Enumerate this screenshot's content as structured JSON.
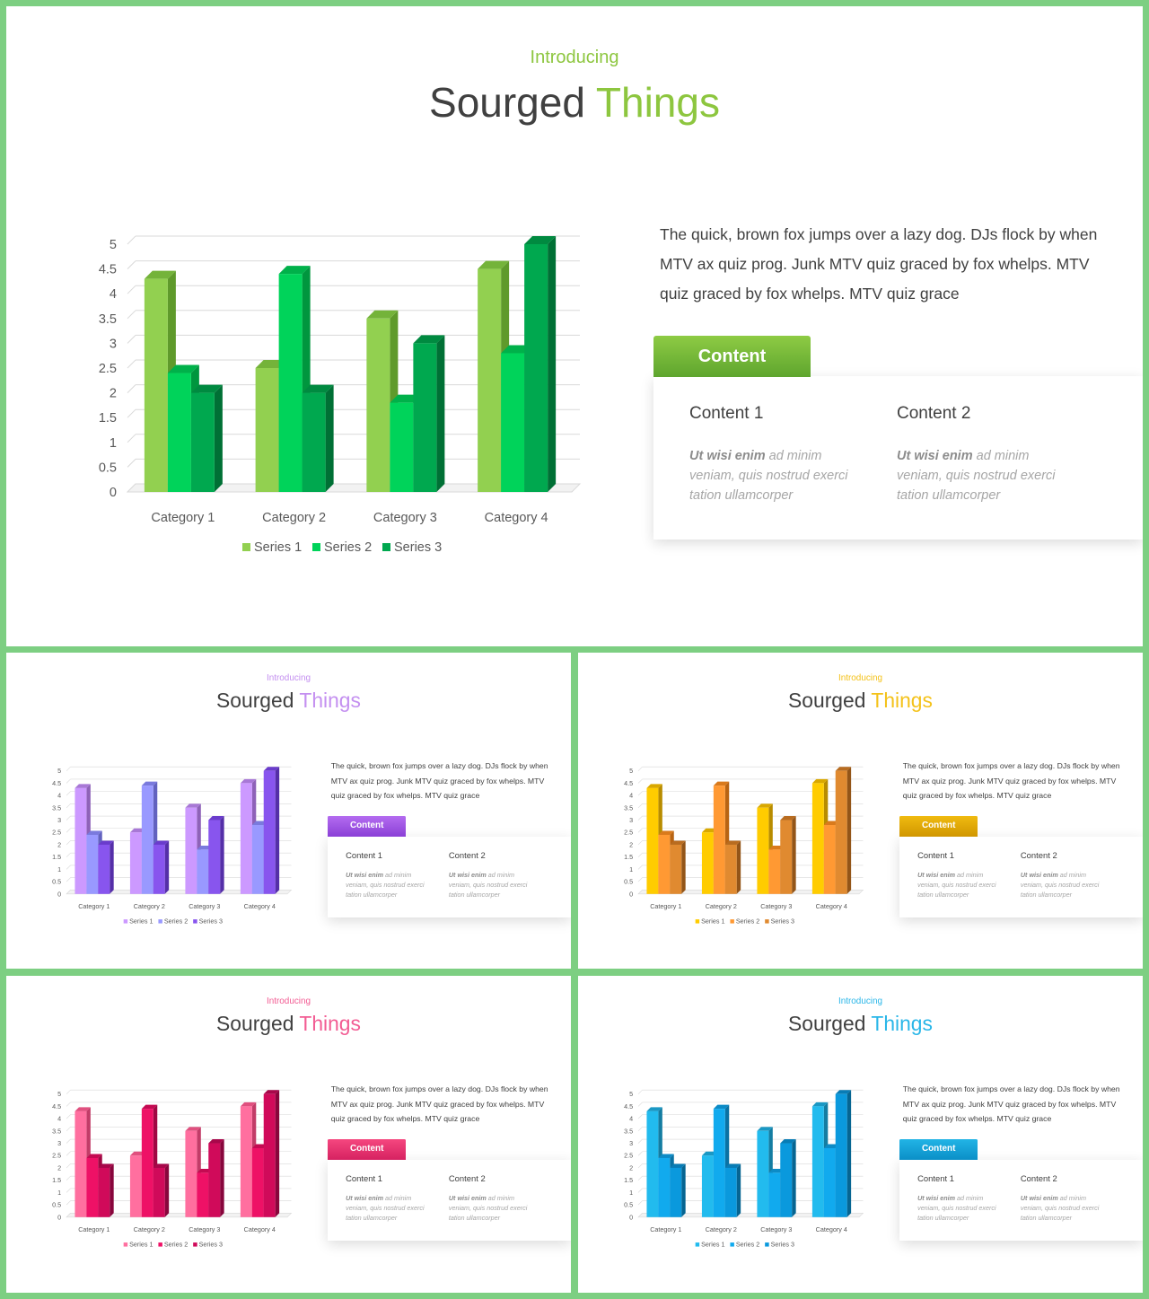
{
  "palettes": {
    "green": {
      "accent": "#8dc63f",
      "tab": [
        "#8ecb44",
        "#5ea52e"
      ],
      "series": [
        [
          "#92d050",
          "#74b33a",
          "#5f9a2b"
        ],
        [
          "#00d35a",
          "#00b14a",
          "#00963e"
        ],
        [
          "#00a84f",
          "#008a40",
          "#007035"
        ]
      ]
    },
    "purple": {
      "accent": "#c490f0",
      "tab": [
        "#b46cf0",
        "#8a3fd6"
      ],
      "series": [
        [
          "#cc99ff",
          "#a878d6",
          "#8e62b8"
        ],
        [
          "#9999ff",
          "#7a7add",
          "#6262bf"
        ],
        [
          "#8855ee",
          "#6a3ccc",
          "#552fa8"
        ]
      ]
    },
    "orange": {
      "accent": "#f4c21a",
      "tab": [
        "#f0bb10",
        "#d09600"
      ],
      "series": [
        [
          "#ffcc00",
          "#d9a800",
          "#b88c00"
        ],
        [
          "#ff9933",
          "#d97a1c",
          "#b86413"
        ],
        [
          "#e08a30",
          "#b86c20",
          "#935518"
        ]
      ]
    },
    "pink": {
      "accent": "#f25c93",
      "tab": [
        "#f5477f",
        "#d62261"
      ],
      "series": [
        [
          "#ff6f9f",
          "#e0507f",
          "#c23c68"
        ],
        [
          "#ee1166",
          "#c40a52",
          "#a00843"
        ],
        [
          "#d00a5a",
          "#a8074a",
          "#88063c"
        ]
      ]
    },
    "blue": {
      "accent": "#29b6e8",
      "tab": [
        "#22b4e6",
        "#0b8fc7"
      ],
      "series": [
        [
          "#22bbee",
          "#1a98c4",
          "#147da2"
        ],
        [
          "#11aaee",
          "#0c8bc6",
          "#0a72a3"
        ],
        [
          "#0a99dd",
          "#087cb5",
          "#066592"
        ]
      ]
    }
  },
  "slides": [
    {
      "palette": "green",
      "kicker": "Introducing",
      "title_main": "Sourged",
      "title_accent": "Things",
      "paragraph": "The quick, brown fox jumps over a lazy dog. DJs flock by when MTV ax quiz prog. Junk MTV quiz graced by fox whelps. MTV quiz graced by fox whelps. MTV quiz grace",
      "tab_label": "Content",
      "columns": [
        {
          "heading": "Content 1",
          "strong": "Ut wisi enim",
          "text": " ad minim veniam, quis nostrud exerci tation ullamcorper"
        },
        {
          "heading": "Content 2",
          "strong": "Ut wisi enim",
          "text": " ad minim veniam, quis nostrud exerci tation ullamcorper"
        }
      ]
    },
    {
      "palette": "purple",
      "kicker": "Introducing",
      "title_main": "Sourged",
      "title_accent": "Things",
      "paragraph": "The quick, brown fox jumps over a lazy dog. DJs flock by when MTV ax quiz prog. Junk MTV quiz graced by fox whelps. MTV quiz graced by fox whelps. MTV quiz grace",
      "tab_label": "Content",
      "columns": [
        {
          "heading": "Content 1",
          "strong": "Ut wisi enim",
          "text": " ad minim veniam, quis nostrud exerci tation ullamcorper"
        },
        {
          "heading": "Content 2",
          "strong": "Ut wisi enim",
          "text": " ad minim veniam, quis nostrud exerci tation ullamcorper"
        }
      ]
    },
    {
      "palette": "orange",
      "kicker": "Introducing",
      "title_main": "Sourged",
      "title_accent": "Things",
      "paragraph": "The quick, brown fox jumps over a lazy dog. DJs flock by when MTV ax quiz prog. Junk MTV quiz graced by fox whelps. MTV quiz graced by fox whelps. MTV quiz grace",
      "tab_label": "Content",
      "columns": [
        {
          "heading": "Content 1",
          "strong": "Ut wisi enim",
          "text": " ad minim veniam, quis nostrud exerci tation ullamcorper"
        },
        {
          "heading": "Content 2",
          "strong": "Ut wisi enim",
          "text": " ad minim veniam, quis nostrud exerci tation ullamcorper"
        }
      ]
    },
    {
      "palette": "pink",
      "kicker": "Introducing",
      "title_main": "Sourged",
      "title_accent": "Things",
      "paragraph": "The quick, brown fox jumps over a lazy dog. DJs flock by when MTV ax quiz prog. Junk MTV quiz graced by fox whelps. MTV quiz graced by fox whelps. MTV quiz grace",
      "tab_label": "Content",
      "columns": [
        {
          "heading": "Content 1",
          "strong": "Ut wisi enim",
          "text": " ad minim veniam, quis nostrud exerci tation ullamcorper"
        },
        {
          "heading": "Content 2",
          "strong": "Ut wisi enim",
          "text": " ad minim veniam, quis nostrud exerci tation ullamcorper"
        }
      ]
    },
    {
      "palette": "blue",
      "kicker": "Introducing",
      "title_main": "Sourged",
      "title_accent": "Things",
      "paragraph": "The quick, brown fox jumps over a lazy dog. DJs flock by when MTV ax quiz prog. Junk MTV quiz graced by fox whelps. MTV quiz graced by fox whelps. MTV quiz grace",
      "tab_label": "Content",
      "columns": [
        {
          "heading": "Content 1",
          "strong": "Ut wisi enim",
          "text": " ad minim veniam, quis nostrud exerci tation ullamcorper"
        },
        {
          "heading": "Content 2",
          "strong": "Ut wisi enim",
          "text": " ad minim veniam, quis nostrud exerci tation ullamcorper"
        }
      ]
    }
  ],
  "chart_data": {
    "type": "bar",
    "style": "3d-clustered-column",
    "categories": [
      "Category 1",
      "Category 2",
      "Category 3",
      "Category 4"
    ],
    "series": [
      {
        "name": "Series 1",
        "values": [
          4.3,
          2.5,
          3.5,
          4.5
        ]
      },
      {
        "name": "Series 2",
        "values": [
          2.4,
          4.4,
          1.8,
          2.8
        ]
      },
      {
        "name": "Series 3",
        "values": [
          2,
          2,
          3,
          5
        ]
      }
    ],
    "y_ticks": [
      "0",
      "0.5",
      "1",
      "1.5",
      "2",
      "2.5",
      "3",
      "3.5",
      "4",
      "4.5",
      "5"
    ],
    "ylim": [
      0,
      5
    ],
    "grid": true,
    "legend": "bottom",
    "title": "",
    "xlabel": "",
    "ylabel": ""
  }
}
